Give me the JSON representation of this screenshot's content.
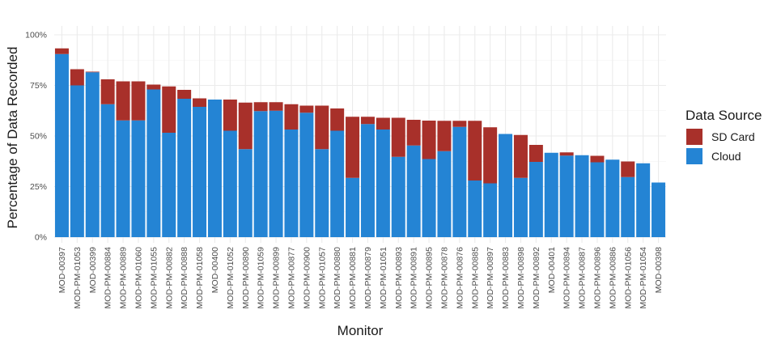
{
  "chart_data": {
    "type": "bar",
    "stacked": true,
    "xlabel": "Monitor",
    "ylabel": "Percentage of Data Recorded",
    "ylim": [
      0,
      100
    ],
    "yticks": [
      0,
      25,
      50,
      75,
      100
    ],
    "ytick_labels": [
      "0%",
      "25%",
      "50%",
      "75%",
      "100%"
    ],
    "grid": true,
    "legend": {
      "title": "Data Source",
      "position": "right"
    },
    "categories": [
      "MOD-00397",
      "MOD-PM-01053",
      "MOD-00399",
      "MOD-PM-00884",
      "MOD-PM-00889",
      "MOD-PM-01060",
      "MOD-PM-01055",
      "MOD-PM-00882",
      "MOD-PM-00888",
      "MOD-PM-01058",
      "MOD-00400",
      "MOD-PM-01052",
      "MOD-PM-00890",
      "MOD-PM-01059",
      "MOD-PM-00899",
      "MOD-PM-00877",
      "MOD-PM-00900",
      "MOD-PM-01057",
      "MOD-PM-00880",
      "MOD-PM-00881",
      "MOD-PM-00879",
      "MOD-PM-01051",
      "MOD-PM-00893",
      "MOD-PM-00891",
      "MOD-PM-00895",
      "MOD-PM-00878",
      "MOD-PM-00876",
      "MOD-PM-00885",
      "MOD-PM-00897",
      "MOD-PM-00883",
      "MOD-PM-00898",
      "MOD-PM-00892",
      "MOD-00401",
      "MOD-PM-00894",
      "MOD-PM-00887",
      "MOD-PM-00896",
      "MOD-PM-00886",
      "MOD-PM-01056",
      "MOD-PM-01054",
      "MOD-00398"
    ],
    "series": [
      {
        "name": "Cloud",
        "color": "#2484d4",
        "values": [
          90.5,
          75,
          81.5,
          65.7,
          57.7,
          57.7,
          73,
          51.6,
          68.4,
          64.4,
          68,
          52.6,
          43.5,
          62.3,
          62.5,
          53.2,
          61.5,
          43.5,
          52.6,
          29.3,
          55.9,
          53.2,
          39.7,
          45.3,
          38.6,
          42.5,
          54.5,
          28,
          26.6,
          51,
          29.3,
          37.2,
          41.7,
          40.3,
          40.5,
          37,
          38.3,
          29.7,
          36.5,
          27
        ]
      },
      {
        "name": "SD Card",
        "color": "#a8302a",
        "values": [
          2.8,
          8,
          0.3,
          12.3,
          19.3,
          19.3,
          2.4,
          22.9,
          4.4,
          4.2,
          0,
          15.4,
          23,
          4.4,
          4.2,
          12.5,
          3.5,
          21.5,
          11,
          30.2,
          3.6,
          5.8,
          19.3,
          12.7,
          19,
          15,
          3,
          29.5,
          27.7,
          0,
          21.2,
          8.4,
          0,
          1.6,
          0,
          3.2,
          0,
          7.7,
          0,
          0
        ]
      }
    ]
  },
  "colors": {
    "cloud": "#2484d4",
    "sd_card": "#a8302a",
    "grid": "#ebebeb",
    "background": "#ffffff"
  }
}
